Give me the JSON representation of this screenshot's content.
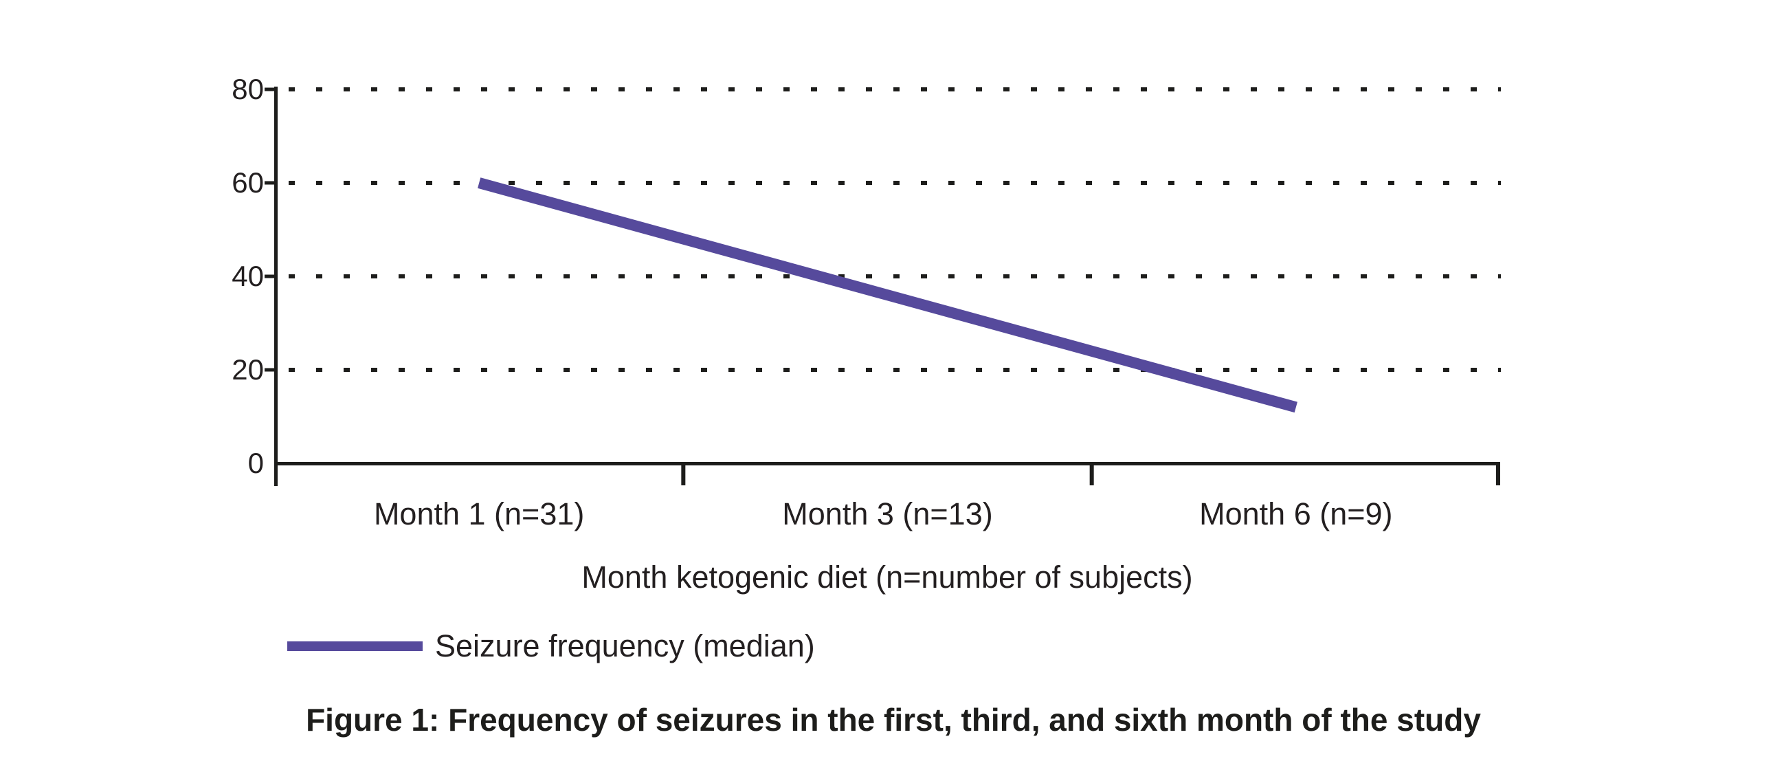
{
  "figure": {
    "caption": "Figure 1: Frequency of seizures in the first, third, and sixth month of the study"
  },
  "chart_data": {
    "type": "line",
    "categories": [
      "Month 1 (n=31)",
      "Month 3 (n=13)",
      "Month 6 (n=9)"
    ],
    "series": [
      {
        "name": "Seizure frequency (median)",
        "values": [
          60,
          36,
          12
        ]
      }
    ],
    "xlabel": "Month ketogenic diet (n=number of subjects)",
    "ylabel": "",
    "ylim": [
      0,
      80
    ],
    "yticks": [
      0,
      20,
      40,
      60,
      80
    ],
    "grid": "horizontal dotted gridlines at 20, 40, 60, 80",
    "legend_position": "bottom-left",
    "line_color": "#564a9c",
    "axis_color": "#1d1d1b",
    "text_color": "#231f20",
    "background_color": "#ffffff"
  }
}
